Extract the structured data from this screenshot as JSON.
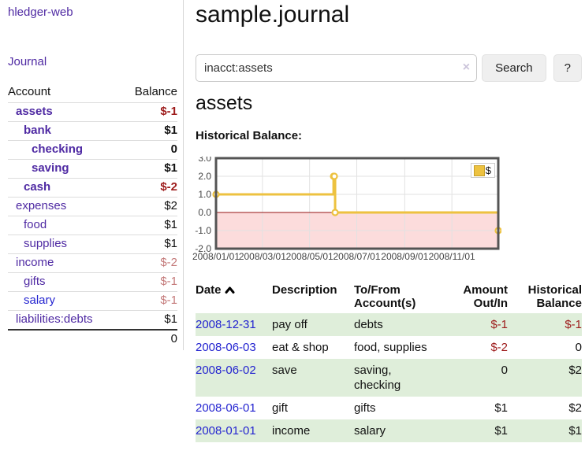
{
  "colors": {
    "link_purple": "#4f2aa3",
    "link_blue": "#2424d0",
    "negative_red": "#9d1b1b",
    "negative_faded_red": "#c47a7a",
    "row_stripe_green": "#dfeeda",
    "chart_gold": "#edc240",
    "chart_negative_region_pink": "#fcdcdc",
    "chart_zero_line_red": "#941414"
  },
  "brand": "hledger-web",
  "sidebar": {
    "journal_link": "Journal",
    "accounts_table": {
      "col_account": "Account",
      "col_balance": "Balance",
      "rows": [
        {
          "account": "assets",
          "balance": "$-1",
          "depth": 1,
          "bold": true,
          "neg": "strong",
          "blue": false
        },
        {
          "account": "bank",
          "balance": "$1",
          "depth": 2,
          "bold": true,
          "neg": null,
          "blue": false
        },
        {
          "account": "checking",
          "balance": "0",
          "depth": 3,
          "bold": true,
          "neg": null,
          "blue": false
        },
        {
          "account": "saving",
          "balance": "$1",
          "depth": 3,
          "bold": true,
          "neg": null,
          "blue": false
        },
        {
          "account": "cash",
          "balance": "$-2",
          "depth": 2,
          "bold": true,
          "neg": "strong",
          "blue": false
        },
        {
          "account": "expenses",
          "balance": "$2",
          "depth": 1,
          "bold": false,
          "neg": null,
          "blue": false
        },
        {
          "account": "food",
          "balance": "$1",
          "depth": 2,
          "bold": false,
          "neg": null,
          "blue": false
        },
        {
          "account": "supplies",
          "balance": "$1",
          "depth": 2,
          "bold": false,
          "neg": null,
          "blue": false
        },
        {
          "account": "income",
          "balance": "$-2",
          "depth": 1,
          "bold": false,
          "neg": "faded",
          "blue": false
        },
        {
          "account": "gifts",
          "balance": "$-1",
          "depth": 2,
          "bold": false,
          "neg": "faded",
          "blue": false
        },
        {
          "account": "salary",
          "balance": "$-1",
          "depth": 2,
          "bold": false,
          "neg": "faded",
          "blue": true
        },
        {
          "account": "liabilities:debts",
          "balance": "$1",
          "depth": 1,
          "bold": false,
          "neg": null,
          "blue": false
        }
      ],
      "total": "0"
    }
  },
  "main": {
    "title": "sample.journal",
    "search": {
      "value": "inacct:assets",
      "clear_icon": "×",
      "search_button": "Search",
      "help_button": "?"
    },
    "account_heading": "assets",
    "register": {
      "sort_column": "Date",
      "sort_direction": "ascending",
      "headers": {
        "date": "Date",
        "description": "Description",
        "accounts": "To/From Account(s)",
        "amount": "Amount Out/In",
        "balance": "Historical Balance"
      },
      "rows": [
        {
          "date": "2008-12-31",
          "description": "pay off",
          "accounts": "debts",
          "amount": "$-1",
          "balance": "$-1",
          "amount_negative": true,
          "balance_negative": true
        },
        {
          "date": "2008-06-03",
          "description": "eat & shop",
          "accounts": "food, supplies",
          "amount": "$-2",
          "balance": "0",
          "amount_negative": true,
          "balance_negative": false
        },
        {
          "date": "2008-06-02",
          "description": "save",
          "accounts": "saving, checking",
          "amount": "0",
          "balance": "$2",
          "amount_negative": false,
          "balance_negative": false
        },
        {
          "date": "2008-06-01",
          "description": "gift",
          "accounts": "gifts",
          "amount": "$1",
          "balance": "$2",
          "amount_negative": false,
          "balance_negative": false
        },
        {
          "date": "2008-01-01",
          "description": "income",
          "accounts": "salary",
          "amount": "$1",
          "balance": "$1",
          "amount_negative": false,
          "balance_negative": false
        }
      ]
    }
  },
  "chart_data": {
    "type": "line",
    "title": "Historical Balance:",
    "step": true,
    "series": [
      {
        "name": "$",
        "color": "#edc240",
        "points": [
          [
            "2008-01-01",
            1
          ],
          [
            "2008-06-01",
            2
          ],
          [
            "2008-06-02",
            2
          ],
          [
            "2008-06-03",
            0
          ],
          [
            "2008-12-31",
            -1
          ]
        ]
      }
    ],
    "xlim": [
      "2008-01-01",
      "2008-12-31"
    ],
    "ylim": [
      -2,
      3
    ],
    "x_ticks": [
      "2008/01/01",
      "2008/03/01",
      "2008/05/01",
      "2008/07/01",
      "2008/09/01",
      "2008/11/01"
    ],
    "y_ticks": [
      3,
      2,
      1,
      0,
      -1,
      -2
    ],
    "grid": true,
    "grid_color": "#e2e2e2",
    "border_color": "#545454",
    "negative_region_color": "#fcdcdc",
    "zero_line_color": "#941414",
    "legend_position": "top-right",
    "legend": [
      "$"
    ]
  }
}
